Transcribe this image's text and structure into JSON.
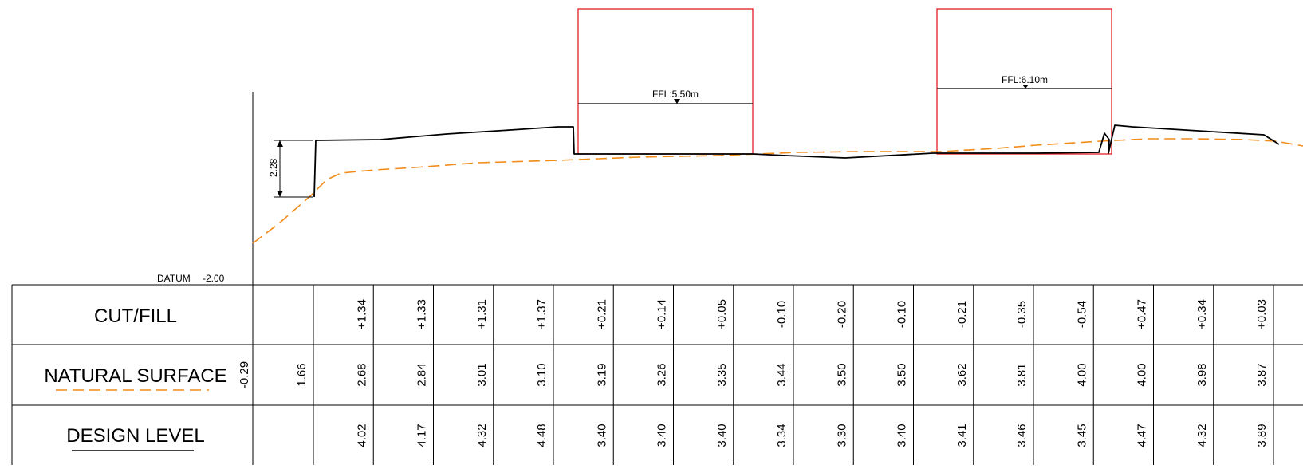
{
  "datum": {
    "label": "DATUM",
    "value": "-2.00"
  },
  "dimension": "2.28",
  "buildings": [
    {
      "ffl_label": "FFL:5.50m"
    },
    {
      "ffl_label": "FFL:6.10m"
    }
  ],
  "rows": {
    "cut_fill": {
      "label": "CUT/FILL",
      "values": [
        "",
        "+1.34",
        "+1.33",
        "+1.31",
        "+1.37",
        "+0.21",
        "+0.14",
        "+0.05",
        "-0.10",
        "-0.20",
        "-0.10",
        "-0.21",
        "-0.35",
        "-0.54",
        "+0.47",
        "+0.34",
        "+0.03"
      ]
    },
    "natural_surface": {
      "label": "NATURAL SURFACE",
      "values": [
        "-0.29",
        "1.66",
        "2.68",
        "2.84",
        "3.01",
        "3.10",
        "3.19",
        "3.26",
        "3.35",
        "3.44",
        "3.50",
        "3.50",
        "3.62",
        "3.81",
        "4.00",
        "4.00",
        "3.98",
        "3.87"
      ]
    },
    "design_level": {
      "label": "DESIGN LEVEL",
      "values": [
        "",
        "4.02",
        "4.17",
        "4.32",
        "4.48",
        "3.40",
        "3.40",
        "3.40",
        "3.34",
        "3.30",
        "3.40",
        "3.41",
        "3.46",
        "3.45",
        "4.47",
        "4.32",
        "3.89"
      ]
    }
  },
  "colors": {
    "design_line": "#000000",
    "natural_surface_line": "#f28c1a",
    "building_outline": "#e31e24",
    "grid": "#000000"
  }
}
